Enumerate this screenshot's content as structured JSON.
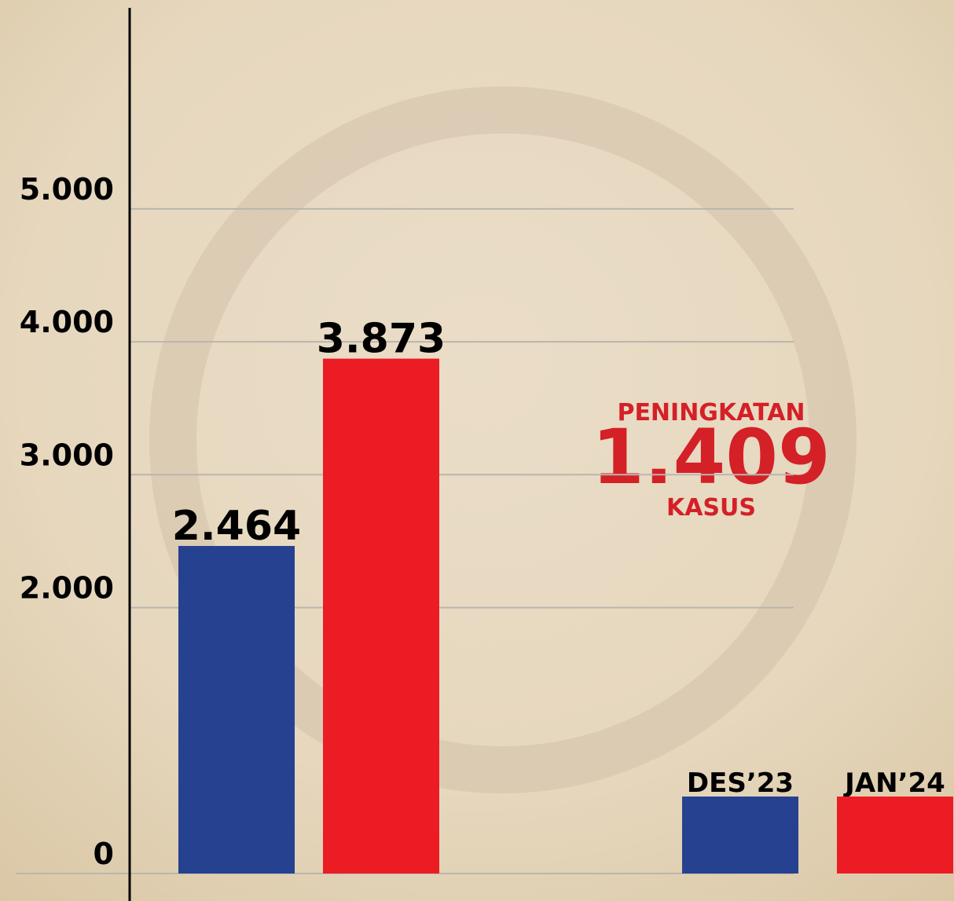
{
  "chart_data": {
    "type": "bar",
    "categories": [
      "DES’23",
      "JAN’24"
    ],
    "values": [
      2464,
      3873
    ],
    "value_labels": [
      "2.464",
      "3.873"
    ],
    "colors": [
      "#26418f",
      "#ec1c24"
    ],
    "ylim": [
      0,
      6500
    ],
    "yticks": [
      {
        "value": 0,
        "label": "0"
      },
      {
        "value": 2000,
        "label": "2.000"
      },
      {
        "value": 3000,
        "label": "3.000"
      },
      {
        "value": 4000,
        "label": "4.000"
      },
      {
        "value": 5000,
        "label": "5.000"
      }
    ],
    "grid": true,
    "annotation": {
      "heading": "PENINGKATAN",
      "amount": "1.409",
      "unit": "KASUS"
    }
  }
}
